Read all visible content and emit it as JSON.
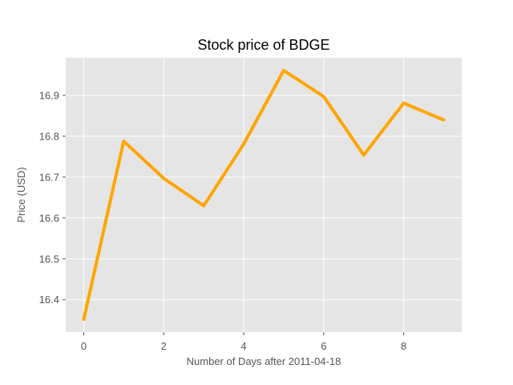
{
  "chart_data": {
    "type": "line",
    "title": "Stock price of BDGE",
    "xlabel": "Number of Days after 2011-04-18",
    "ylabel": "Price (USD)",
    "x": [
      0,
      1,
      2,
      3,
      4,
      5,
      6,
      7,
      8,
      9
    ],
    "series": [
      {
        "values": [
          16.352,
          16.788,
          16.697,
          16.63,
          16.781,
          16.961,
          16.897,
          16.754,
          16.881,
          16.84
        ],
        "color": "#FFA500"
      }
    ],
    "xlim": [
      -0.45,
      9.45
    ],
    "ylim": [
      16.321,
      16.992
    ],
    "xticks": [
      0,
      2,
      4,
      6,
      8
    ],
    "xtick_labels": [
      "0",
      "2",
      "4",
      "6",
      "8"
    ],
    "yticks": [
      16.4,
      16.5,
      16.6,
      16.7,
      16.8,
      16.9
    ],
    "ytick_labels": [
      "16.4",
      "16.5",
      "16.6",
      "16.7",
      "16.8",
      "16.9"
    ],
    "grid": true,
    "style": {
      "plot_background": "#E5E5E5",
      "grid_color": "#FFFFFF",
      "tick_color": "#555555"
    }
  }
}
